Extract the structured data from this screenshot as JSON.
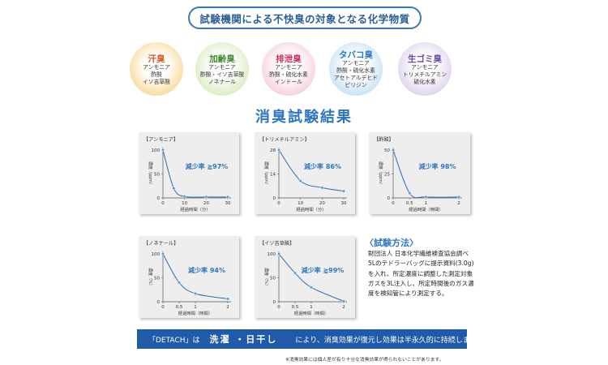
{
  "header": {
    "title": "試験機関による不快臭の対象となる化学物質"
  },
  "odor_circles": [
    {
      "title": "汗臭",
      "lines": [
        "アンモニア",
        "酢酸",
        "イソ吉草酸"
      ],
      "title_color": "#d9531e",
      "fill": "#f6c869"
    },
    {
      "title": "加齢臭",
      "lines": [
        "アンモニア",
        "酢酸・イソ吉草酸",
        "ノネナール"
      ],
      "title_color": "#3f8b2e",
      "fill": "#c7e2a2"
    },
    {
      "title": "排泄臭",
      "lines": [
        "アンモニア",
        "酢酸・硫化水素",
        "インドール"
      ],
      "title_color": "#d42a58",
      "fill": "#f4b7c7"
    },
    {
      "title": "タバコ臭",
      "lines": [
        "アンモニア",
        "酢酸・硫化水素",
        "アセトアルデヒド",
        "ピリジン"
      ],
      "title_color": "#2b78c4",
      "fill": "#a9d4ee"
    },
    {
      "title": "生ゴミ臭",
      "lines": [
        "アンモニア",
        "トリメチルアミン",
        "硫化水素"
      ],
      "title_color": "#6a4aa0",
      "fill": "#cdbce4"
    }
  ],
  "results_title": "消臭試験結果",
  "chart_data": [
    {
      "type": "line",
      "title": "【アンモニア】",
      "xlabel": "経過時間（分）",
      "ylabel": "濃度（ppm）",
      "x": [
        0,
        5,
        10,
        20,
        30
      ],
      "values": [
        100,
        20,
        3,
        2,
        2
      ],
      "ylim": [
        0,
        100
      ],
      "xlim": [
        0,
        30
      ],
      "x_ticks": [
        "0",
        "10",
        "20",
        "30"
      ],
      "y_ticks": [
        "0",
        "50",
        "100"
      ],
      "annotation": "減少率 ≧97%"
    },
    {
      "type": "line",
      "title": "【トリメチルアミン】",
      "xlabel": "経過時間（分）",
      "ylabel": "濃度（ppm）",
      "x": [
        0,
        10,
        20,
        30
      ],
      "values": [
        28,
        10,
        6,
        4
      ],
      "ylim": [
        0,
        28
      ],
      "xlim": [
        0,
        30
      ],
      "x_ticks": [
        "0",
        "10",
        "20",
        "30"
      ],
      "y_ticks": [
        "0",
        "14",
        "28"
      ],
      "annotation": "減少率 86%"
    },
    {
      "type": "line",
      "title": "【酢酸】",
      "xlabel": "経過時間（時間）",
      "ylabel": "濃度（ppm）",
      "x": [
        0,
        0.5,
        1,
        2
      ],
      "values": [
        50,
        5,
        1,
        1
      ],
      "ylim": [
        0,
        50
      ],
      "xlim": [
        0,
        2
      ],
      "x_ticks": [
        "0",
        "0.5",
        "1",
        "2"
      ],
      "y_ticks": [
        "0",
        "25",
        "50"
      ],
      "annotation": "減少率 98%"
    },
    {
      "type": "line",
      "title": "【ノネナール】",
      "xlabel": "経過時間（時間）",
      "ylabel": "濃度（%）",
      "x": [
        0,
        0.5,
        1,
        2
      ],
      "values": [
        100,
        40,
        17,
        6
      ],
      "ylim": [
        0,
        100
      ],
      "xlim": [
        0,
        2
      ],
      "x_ticks": [
        "0",
        "0.5",
        "1",
        "2"
      ],
      "y_ticks": [
        "0",
        "50",
        "100"
      ],
      "annotation": "減少率 94%"
    },
    {
      "type": "line",
      "title": "【イソ吉草酸】",
      "xlabel": "経過時間（時間）",
      "ylabel": "濃度（%）",
      "x": [
        0,
        0.5,
        1,
        2
      ],
      "values": [
        100,
        60,
        30,
        1
      ],
      "ylim": [
        0,
        100
      ],
      "xlim": [
        0,
        2
      ],
      "x_ticks": [
        "0",
        "0.5",
        "1",
        "2"
      ],
      "y_ticks": [
        "0",
        "50",
        "100"
      ],
      "annotation": "減少率 ≧99%"
    }
  ],
  "colors": {
    "line": "#2b6db0",
    "marker": "#4aa0d8",
    "annotation": "#2e77c0",
    "axis": "#555555",
    "banner": "#1f5ba8"
  },
  "method": {
    "title": "〈試験方法〉",
    "lines": [
      "財団法人 日本化学繊維検査協会調べ",
      "5Lのテドラーバッグに提示資料(3.0g)",
      "を入れ、所定濃度に調整した測定対象",
      "ガスを3L注入し、所定時間後のガス濃",
      "度を検知管により測定する。"
    ]
  },
  "banner": {
    "part1": "「DETACH」は",
    "part2": "洗濯 ・日干し",
    "part3": "により、消臭効果が復元し効果は半永久的に持続します"
  },
  "footnote": "※消臭効果には個人差が有り十分な消臭効果が得られないことがあります。"
}
